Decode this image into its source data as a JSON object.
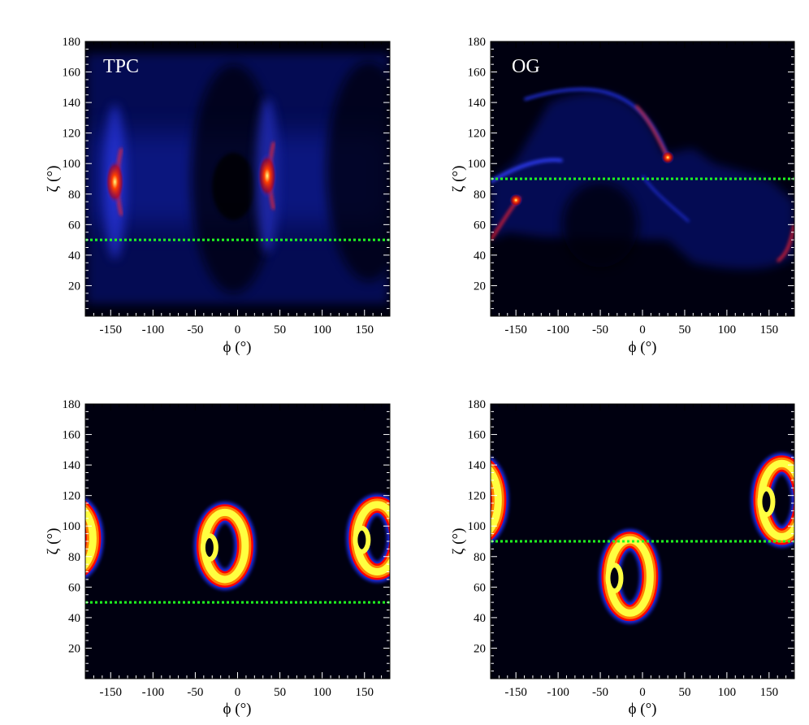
{
  "chart_data": [
    {
      "type": "heatmap",
      "label": "TPC",
      "xlabel": "ϕ (°)",
      "ylabel": "ζ (°)",
      "xlim": [
        -180,
        180
      ],
      "ylim": [
        0,
        180
      ],
      "xticks": [
        -150,
        -100,
        -50,
        0,
        50,
        100,
        150
      ],
      "yticks": [
        20,
        40,
        60,
        80,
        100,
        120,
        140,
        160,
        180
      ],
      "observer_line_zeta": 50,
      "features": [
        {
          "kind": "caustic",
          "phi": -145,
          "zeta": 88
        },
        {
          "kind": "caustic",
          "phi": 35,
          "zeta": 92
        }
      ]
    },
    {
      "type": "heatmap",
      "label": "OG",
      "xlabel": "ϕ (°)",
      "ylabel": "ζ (°)",
      "xlim": [
        -180,
        180
      ],
      "ylim": [
        0,
        180
      ],
      "xticks": [
        -150,
        -100,
        -50,
        0,
        50,
        100,
        150
      ],
      "yticks": [
        20,
        40,
        60,
        80,
        100,
        120,
        140,
        160,
        180
      ],
      "observer_line_zeta": 90,
      "features": [
        {
          "kind": "caustic",
          "phi": 30,
          "zeta": 104
        },
        {
          "kind": "caustic",
          "phi": -150,
          "zeta": 76
        }
      ]
    },
    {
      "type": "heatmap",
      "label": "",
      "xlabel": "ϕ (°)",
      "ylabel": "ζ (°)",
      "xlim": [
        -180,
        180
      ],
      "ylim": [
        0,
        180
      ],
      "xticks": [
        -150,
        -100,
        -50,
        0,
        50,
        100,
        150
      ],
      "yticks": [
        20,
        40,
        60,
        80,
        100,
        120,
        140,
        160,
        180
      ],
      "observer_line_zeta": 50,
      "rings": [
        {
          "phi": -15,
          "zeta": 87,
          "half_width": 24,
          "half_height": 22
        },
        {
          "phi": 165,
          "zeta": 92,
          "half_width": 24,
          "half_height": 22
        },
        {
          "phi": -195,
          "zeta": 92,
          "half_width": 24,
          "half_height": 22
        }
      ]
    },
    {
      "type": "heatmap",
      "label": "",
      "xlabel": "ϕ (°)",
      "ylabel": "ζ (°)",
      "xlim": [
        -180,
        180
      ],
      "ylim": [
        0,
        180
      ],
      "xticks": [
        -150,
        -100,
        -50,
        0,
        50,
        100,
        150
      ],
      "yticks": [
        20,
        40,
        60,
        80,
        100,
        120,
        140,
        160,
        180
      ],
      "observer_line_zeta": 90,
      "rings": [
        {
          "phi": -15,
          "zeta": 67,
          "half_width": 24,
          "half_height": 24
        },
        {
          "phi": 165,
          "zeta": 117,
          "half_width": 24,
          "half_height": 24
        },
        {
          "phi": -195,
          "zeta": 117,
          "half_width": 24,
          "half_height": 24
        }
      ]
    }
  ],
  "colors": {
    "background_dark": "#000010",
    "glow_blue": "#1020d0",
    "ring_red": "#ff0000",
    "ring_orange": "#ff8000",
    "ring_yellow": "#ffff40",
    "observer_line": "#20ff20"
  }
}
